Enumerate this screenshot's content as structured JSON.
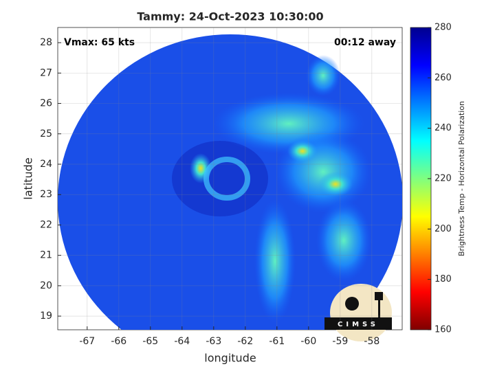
{
  "chart_data": {
    "type": "image",
    "title": "Tammy: 24-Oct-2023 10:30:00",
    "annotations": [
      "Vmax: 65 kts",
      "00:12 away"
    ],
    "xlabel": "longitude",
    "ylabel": "latitude",
    "xlim": [
      -67.93,
      -57.04
    ],
    "xticks": [
      -67,
      -66,
      -65,
      -64,
      -63,
      -62,
      -61,
      -60,
      -59,
      -58
    ],
    "ylim": [
      18.55,
      28.5
    ],
    "yticks": [
      19,
      20,
      21,
      22,
      23,
      24,
      25,
      26,
      27,
      28
    ],
    "grid": true,
    "colorbar": {
      "label": "Brightness Temp - Horizontal Polarization",
      "lim": [
        160,
        280
      ],
      "ticks": [
        160,
        180,
        200,
        220,
        240,
        260,
        280
      ],
      "colormap": "jet"
    },
    "logo": "CIMSS"
  }
}
